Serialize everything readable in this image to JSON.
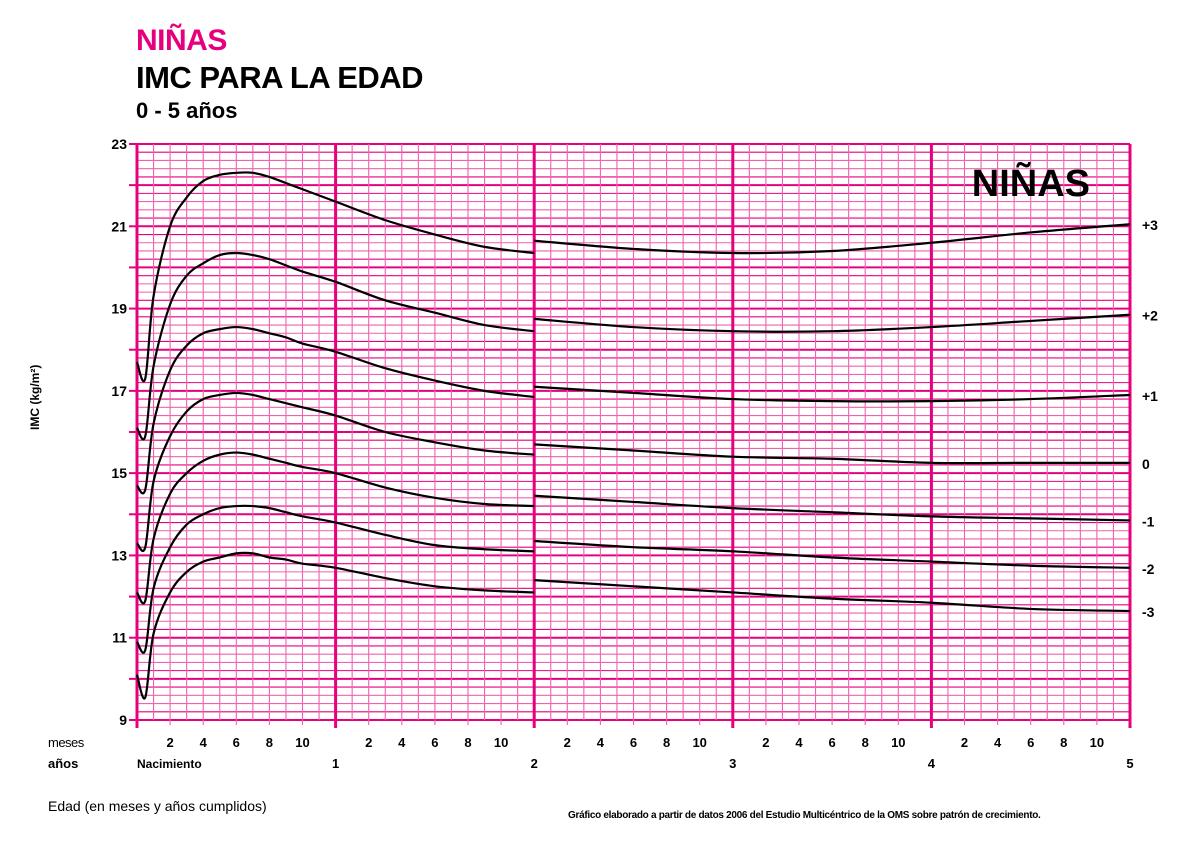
{
  "header": {
    "sex": "NIÑAS",
    "title": "IMC PARA LA EDAD",
    "range": "0 - 5 años"
  },
  "watermark": "NIÑAS",
  "axis": {
    "ylabel": "IMC (kg/m²)",
    "x_row_months_label": "meses",
    "x_row_years_label": "años",
    "xcaption": "Edad (en meses y años cumplidos)"
  },
  "source": "Gráfico elaborado a partir de datos 2006 del Estudio Multicéntrico de la OMS sobre patrón de crecimiento.",
  "colors": {
    "grid_major": "#E6007E",
    "grid_minor": "#EF62AE",
    "curve": "#000000",
    "accent": "#E6007E"
  },
  "chart_data": {
    "type": "line",
    "title": "NIÑAS - IMC PARA LA EDAD 0 - 5 años",
    "xlabel": "Edad (en meses y años cumplidos)",
    "ylabel": "IMC (kg/m²)",
    "xlim": [
      0,
      60
    ],
    "ylim": [
      9,
      23
    ],
    "grid": true,
    "y_ticks": [
      9,
      11,
      13,
      15,
      17,
      19,
      21,
      23
    ],
    "x_month_ticks": [
      2,
      4,
      6,
      8,
      10
    ],
    "x_year_labels": [
      "Nacimiento",
      "1",
      "2",
      "3",
      "4",
      "5"
    ],
    "legend_position": "right",
    "x_months": [
      0,
      0.5,
      1,
      2,
      3,
      4,
      5,
      6,
      7,
      8,
      9,
      10,
      12,
      15,
      18,
      21,
      24,
      24,
      30,
      36,
      42,
      48,
      54,
      60
    ],
    "series": [
      {
        "name": "+3",
        "values": [
          17.7,
          17.3,
          19.3,
          21.0,
          21.7,
          22.1,
          22.25,
          22.3,
          22.3,
          22.2,
          22.05,
          21.9,
          21.6,
          21.15,
          20.8,
          20.5,
          20.35,
          20.65,
          20.45,
          20.35,
          20.4,
          20.6,
          20.85,
          21.05
        ]
      },
      {
        "name": "+2",
        "values": [
          16.1,
          15.9,
          17.6,
          19.1,
          19.8,
          20.1,
          20.3,
          20.35,
          20.3,
          20.2,
          20.05,
          19.9,
          19.65,
          19.2,
          18.9,
          18.6,
          18.45,
          18.75,
          18.55,
          18.45,
          18.45,
          18.55,
          18.7,
          18.85
        ]
      },
      {
        "name": "+1",
        "values": [
          14.7,
          14.6,
          16.2,
          17.5,
          18.1,
          18.4,
          18.5,
          18.55,
          18.5,
          18.4,
          18.3,
          18.15,
          17.95,
          17.55,
          17.25,
          17.0,
          16.85,
          17.1,
          16.95,
          16.8,
          16.75,
          16.75,
          16.8,
          16.9
        ]
      },
      {
        "name": "0",
        "values": [
          13.3,
          13.2,
          14.8,
          15.9,
          16.5,
          16.8,
          16.9,
          16.95,
          16.9,
          16.8,
          16.7,
          16.6,
          16.4,
          16.0,
          15.75,
          15.55,
          15.45,
          15.7,
          15.55,
          15.4,
          15.35,
          15.25,
          15.25,
          15.25
        ]
      },
      {
        "name": "-1",
        "values": [
          12.1,
          11.9,
          13.4,
          14.5,
          15.0,
          15.3,
          15.45,
          15.5,
          15.45,
          15.35,
          15.25,
          15.15,
          15.0,
          14.65,
          14.4,
          14.25,
          14.2,
          14.45,
          14.3,
          14.15,
          14.05,
          13.95,
          13.9,
          13.85
        ]
      },
      {
        "name": "-2",
        "values": [
          10.9,
          10.7,
          12.2,
          13.2,
          13.75,
          14.0,
          14.15,
          14.2,
          14.2,
          14.15,
          14.05,
          13.95,
          13.8,
          13.5,
          13.25,
          13.15,
          13.1,
          13.35,
          13.2,
          13.1,
          12.95,
          12.85,
          12.75,
          12.7
        ]
      },
      {
        "name": "-3",
        "values": [
          10.1,
          9.55,
          11.1,
          12.1,
          12.6,
          12.85,
          12.95,
          13.05,
          13.05,
          12.95,
          12.9,
          12.8,
          12.7,
          12.45,
          12.25,
          12.15,
          12.1,
          12.4,
          12.25,
          12.1,
          11.95,
          11.85,
          11.7,
          11.65
        ]
      }
    ]
  }
}
